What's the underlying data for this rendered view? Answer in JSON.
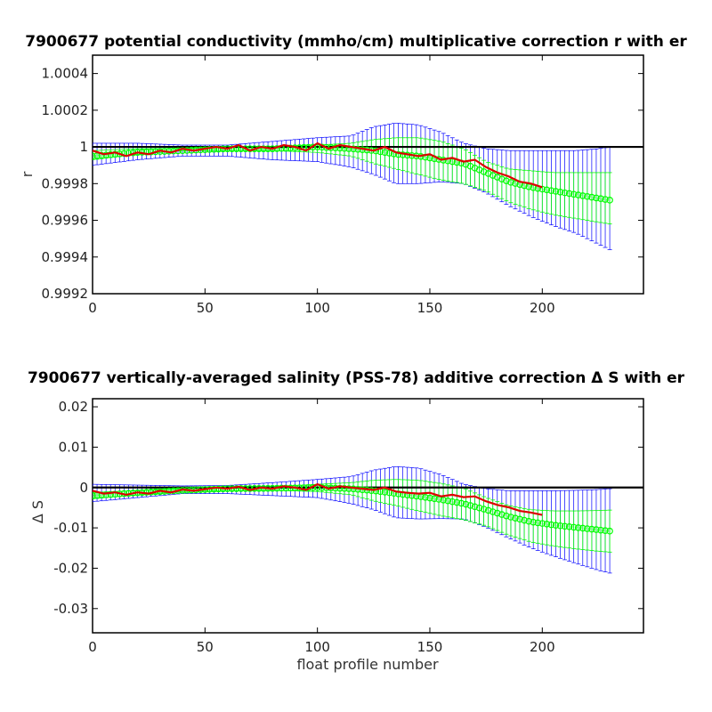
{
  "chart_data": [
    {
      "type": "line",
      "title": "7900677 potential conductivity (mmho/cm) multiplicative correction r with er",
      "xlabel": "",
      "ylabel": "r",
      "xlim": [
        0,
        245
      ],
      "ylim": [
        0.9992,
        1.0005
      ],
      "xticks": [
        "0",
        "50",
        "100",
        "150",
        "200"
      ],
      "yticks": [
        "0.9992",
        "0.9994",
        "0.9996",
        "0.9998",
        "1",
        "1.0002",
        "1.0004"
      ],
      "reference_line": 1,
      "colors": {
        "band": "#0000ff",
        "fit": "#00ff00",
        "profile": "#dd0000",
        "reference": "#000000"
      },
      "series": [
        {
          "style": "errorbar",
          "x": [
            0,
            20,
            40,
            60,
            80,
            100,
            115,
            125,
            135,
            145,
            155,
            165,
            175,
            185,
            195,
            205,
            215,
            225,
            230
          ],
          "y": [
            0.99996,
            0.99998,
            0.99999,
            1.0,
            1.0,
            1.0,
            1.0,
            1.0,
            1.0,
            1.0,
            1.0,
            1.0,
            1.0,
            1.0,
            1.0,
            1.0,
            1.0,
            1.0,
            1.0
          ],
          "lower": [
            0.9999,
            0.99993,
            0.99995,
            0.99995,
            0.99993,
            0.99992,
            0.99989,
            0.99985,
            0.9998,
            0.9998,
            0.99981,
            0.9998,
            0.99975,
            0.99968,
            0.99962,
            0.99957,
            0.99953,
            0.99947,
            0.99944
          ],
          "upper": [
            1.00002,
            1.00002,
            1.00001,
            1.00001,
            1.00003,
            1.00005,
            1.00006,
            1.00011,
            1.00013,
            1.00012,
            1.00008,
            1.00002,
            0.99999,
            0.99998,
            0.99998,
            0.99998,
            0.99998,
            0.99999,
            1.0
          ]
        },
        {
          "style": "errorbar",
          "x": [
            0,
            20,
            40,
            60,
            80,
            100,
            115,
            125,
            135,
            145,
            155,
            165,
            175,
            185,
            195,
            205,
            215,
            225,
            230
          ],
          "y": [
            0.99995,
            0.99997,
            0.99998,
            0.99999,
            0.99999,
            1.0,
            0.99999,
            0.99998,
            0.99996,
            0.99995,
            0.99993,
            0.99991,
            0.99986,
            0.99981,
            0.99978,
            0.99976,
            0.99974,
            0.99972,
            0.99971
          ],
          "lower": [
            0.99993,
            0.99996,
            0.99998,
            0.99998,
            0.99998,
            0.99997,
            0.99995,
            0.99991,
            0.99988,
            0.99985,
            0.99982,
            0.9998,
            0.99976,
            0.9997,
            0.99966,
            0.99963,
            0.99961,
            0.99959,
            0.99958
          ],
          "upper": [
            0.99998,
            0.99999,
            0.99999,
            1.0,
            1.0,
            1.00001,
            1.00002,
            1.00004,
            1.00005,
            1.00005,
            1.00003,
            0.99999,
            0.99992,
            0.99988,
            0.99987,
            0.99986,
            0.99986,
            0.99986,
            0.99986
          ]
        },
        {
          "style": "line",
          "x": [
            0,
            5,
            10,
            15,
            20,
            25,
            30,
            35,
            40,
            45,
            50,
            55,
            60,
            65,
            70,
            75,
            80,
            85,
            90,
            95,
            100,
            105,
            110,
            115,
            120,
            125,
            130,
            135,
            140,
            145,
            150,
            155,
            160,
            165,
            170,
            175,
            180,
            185,
            190,
            195,
            200
          ],
          "y": [
            0.99998,
            0.99996,
            0.99997,
            0.99995,
            0.99997,
            0.99996,
            0.99998,
            0.99997,
            0.99999,
            0.99998,
            0.99999,
            1.0,
            0.99999,
            1.00001,
            0.99998,
            1.0,
            0.99999,
            1.00001,
            1.0,
            0.99998,
            1.00002,
            0.99999,
            1.00001,
            1.0,
            0.99999,
            0.99998,
            1.0,
            0.99997,
            0.99996,
            0.99995,
            0.99996,
            0.99993,
            0.99994,
            0.99992,
            0.99993,
            0.99989,
            0.99986,
            0.99984,
            0.99981,
            0.9998,
            0.99978
          ]
        }
      ]
    },
    {
      "type": "line",
      "title": "7900677 vertically-averaged salinity (PSS-78) additive correction Δ S with er",
      "xlabel": "float profile number",
      "ylabel": "Δ S",
      "xlim": [
        0,
        245
      ],
      "ylim": [
        -0.036,
        0.022
      ],
      "xticks": [
        "0",
        "50",
        "100",
        "150",
        "200"
      ],
      "yticks": [
        "-0.03",
        "-0.02",
        "-0.01",
        "0",
        "0.01",
        "0.02"
      ],
      "reference_line": 0,
      "colors": {
        "band": "#0000ff",
        "fit": "#00ff00",
        "profile": "#dd0000",
        "reference": "#000000"
      },
      "series": [
        {
          "style": "errorbar",
          "x": [
            0,
            20,
            40,
            60,
            80,
            100,
            115,
            125,
            135,
            145,
            155,
            165,
            175,
            185,
            195,
            205,
            215,
            225,
            230
          ],
          "y": [
            -0.0015,
            -0.0008,
            -0.0003,
            0.0,
            0.0,
            0.0,
            0.0,
            0.0,
            0.0,
            0.0,
            0.0,
            0.0,
            0.0,
            0.0,
            0.0,
            0.0,
            0.0,
            0.0,
            0.0
          ],
          "lower": [
            -0.0035,
            -0.0025,
            -0.0015,
            -0.0015,
            -0.002,
            -0.0025,
            -0.004,
            -0.0055,
            -0.0075,
            -0.0078,
            -0.0077,
            -0.0078,
            -0.0098,
            -0.0125,
            -0.015,
            -0.017,
            -0.0188,
            -0.0205,
            -0.0212
          ],
          "upper": [
            0.0008,
            0.0006,
            0.0004,
            0.0005,
            0.0012,
            0.002,
            0.0027,
            0.0043,
            0.0052,
            0.0048,
            0.0032,
            0.0008,
            -0.0003,
            -0.0008,
            -0.0008,
            -0.0008,
            -0.0007,
            -0.0005,
            -0.0003
          ]
        },
        {
          "style": "errorbar",
          "x": [
            0,
            20,
            40,
            60,
            80,
            100,
            115,
            125,
            135,
            145,
            155,
            165,
            175,
            185,
            195,
            205,
            215,
            225,
            230
          ],
          "y": [
            -0.002,
            -0.0013,
            -0.0007,
            -0.0003,
            -0.0002,
            0.0,
            -0.0003,
            -0.0008,
            -0.0015,
            -0.0022,
            -0.003,
            -0.004,
            -0.0055,
            -0.0072,
            -0.0085,
            -0.0093,
            -0.0099,
            -0.0105,
            -0.0108
          ],
          "lower": [
            -0.0028,
            -0.0018,
            -0.001,
            -0.0008,
            -0.0007,
            -0.001,
            -0.0018,
            -0.0033,
            -0.0045,
            -0.0058,
            -0.007,
            -0.008,
            -0.0095,
            -0.0118,
            -0.0135,
            -0.0145,
            -0.0152,
            -0.0158,
            -0.016
          ],
          "upper": [
            -0.0012,
            -0.0008,
            -0.0003,
            0.0,
            0.0002,
            0.0008,
            0.0012,
            0.0018,
            0.002,
            0.0018,
            0.001,
            -0.0002,
            -0.0025,
            -0.0045,
            -0.0055,
            -0.0058,
            -0.0058,
            -0.0057,
            -0.0056
          ]
        },
        {
          "style": "line",
          "x": [
            0,
            5,
            10,
            15,
            20,
            25,
            30,
            35,
            40,
            45,
            50,
            55,
            60,
            65,
            70,
            75,
            80,
            85,
            90,
            95,
            100,
            105,
            110,
            115,
            120,
            125,
            130,
            135,
            140,
            145,
            150,
            155,
            160,
            165,
            170,
            175,
            180,
            185,
            190,
            195,
            200
          ],
          "y": [
            -0.0008,
            -0.0015,
            -0.0012,
            -0.0018,
            -0.0012,
            -0.0015,
            -0.0008,
            -0.0012,
            -0.0005,
            -0.0008,
            -0.0004,
            0.0,
            -0.0003,
            0.0002,
            -0.0006,
            0.0,
            -0.0003,
            0.0003,
            0.0,
            -0.0006,
            0.0008,
            -0.0003,
            0.0003,
            0.0,
            -0.0003,
            -0.0006,
            0.0,
            -0.001,
            -0.0013,
            -0.0015,
            -0.0013,
            -0.0022,
            -0.0018,
            -0.0024,
            -0.0022,
            -0.0034,
            -0.0043,
            -0.0049,
            -0.0058,
            -0.0062,
            -0.0068
          ]
        }
      ]
    }
  ]
}
